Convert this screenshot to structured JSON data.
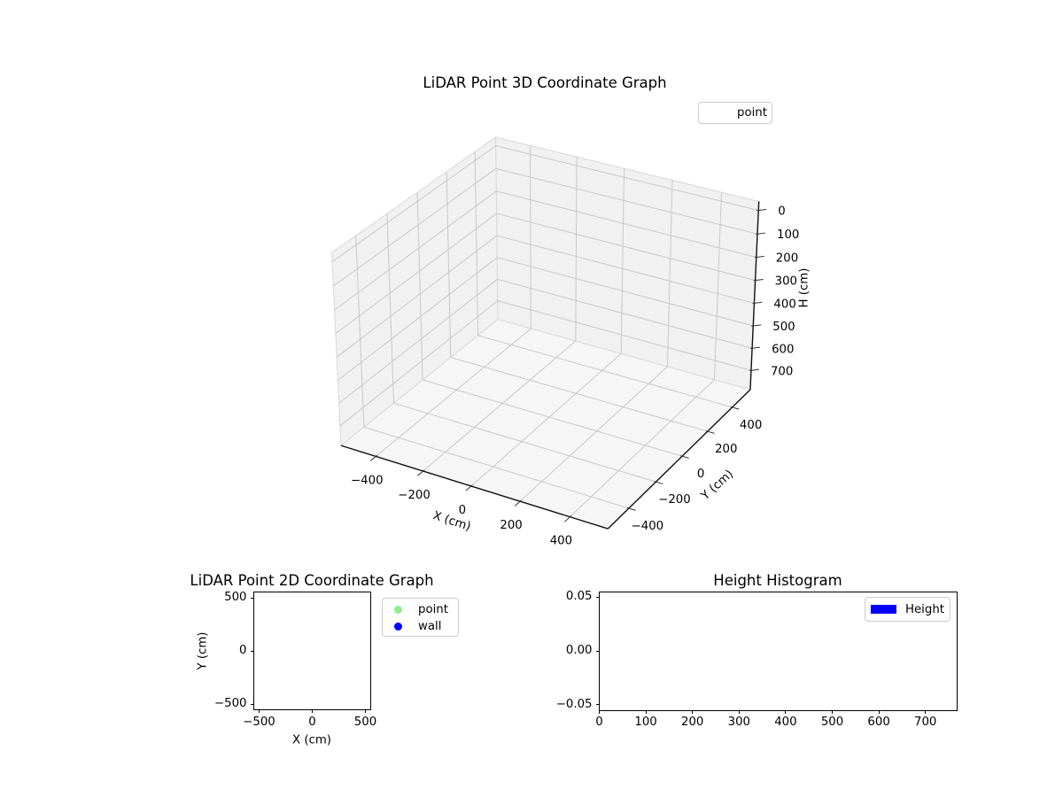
{
  "figure": {
    "background": "#ffffff"
  },
  "plots": {
    "p3d": {
      "title": "LiDAR Point 3D Coordinate Graph",
      "xlabel": "X (cm)",
      "ylabel": "Y (cm)",
      "zlabel": "H (cm)",
      "xtick_labels": [
        "−400",
        "−200",
        "0",
        "200",
        "400"
      ],
      "ytick_labels": [
        "−400",
        "−200",
        "0",
        "200",
        "400"
      ],
      "ztick_labels": [
        "0",
        "100",
        "200",
        "300",
        "400",
        "500",
        "600",
        "700"
      ],
      "legend": [
        {
          "label": "point",
          "marker_color": "transparent"
        }
      ]
    },
    "p2d": {
      "title": "LiDAR Point 2D Coordinate Graph",
      "xlabel": "X (cm)",
      "ylabel": "Y (cm)",
      "xtick_labels": [
        "−500",
        "0",
        "500"
      ],
      "ytick_labels": [
        "500",
        "0",
        "−500"
      ],
      "legend": [
        {
          "label": "point",
          "marker_color": "#90ee90"
        },
        {
          "label": "wall",
          "marker_color": "#0000ff"
        }
      ]
    },
    "hist": {
      "title": "Height Histogram",
      "xtick_labels": [
        "0",
        "100",
        "200",
        "300",
        "400",
        "500",
        "600",
        "700"
      ],
      "ytick_labels": [
        "0.05",
        "0.00",
        "−0.05"
      ],
      "legend": [
        {
          "label": "Height",
          "swatch_color": "#0000ff"
        }
      ]
    }
  },
  "chart_data": [
    {
      "type": "scatter",
      "dim": "3d",
      "title": "LiDAR Point 3D Coordinate Graph",
      "xlabel": "X (cm)",
      "ylabel": "Y (cm)",
      "zlabel": "H (cm)",
      "xlim": [
        -550,
        550
      ],
      "ylim": [
        -550,
        550
      ],
      "zlim": [
        787.5,
        -37.5
      ],
      "z_axis_inverted": true,
      "xticks": [
        -400,
        -200,
        0,
        200,
        400
      ],
      "yticks": [
        -400,
        -200,
        0,
        200,
        400
      ],
      "zticks": [
        0,
        100,
        200,
        300,
        400,
        500,
        600,
        700
      ],
      "grid": true,
      "view": {
        "elev": 30,
        "azim": -60
      },
      "legend_position": "upper right",
      "series": [
        {
          "name": "point",
          "points": []
        }
      ]
    },
    {
      "type": "scatter",
      "dim": "2d",
      "title": "LiDAR Point 2D Coordinate Graph",
      "xlabel": "X (cm)",
      "ylabel": "Y (cm)",
      "xlim": [
        -550,
        550
      ],
      "ylim": [
        -550,
        550
      ],
      "xticks": [
        -500,
        0,
        500
      ],
      "yticks": [
        500,
        0,
        -500
      ],
      "grid": false,
      "legend_position": "outside upper right",
      "series": [
        {
          "name": "point",
          "color": "#90ee90",
          "points": []
        },
        {
          "name": "wall",
          "color": "#0000ff",
          "points": []
        }
      ]
    },
    {
      "type": "bar",
      "title": "Height Histogram",
      "xlabel": "",
      "ylabel": "",
      "xlim": [
        0,
        768
      ],
      "ylim": [
        -0.055,
        0.055
      ],
      "xticks": [
        0,
        100,
        200,
        300,
        400,
        500,
        600,
        700
      ],
      "yticks": [
        0.05,
        0,
        -0.05
      ],
      "grid": false,
      "legend_position": "upper right",
      "series": [
        {
          "name": "Height",
          "color": "#0000ff",
          "values": []
        }
      ]
    }
  ],
  "style": {
    "pane_wall": "#f1f1f1",
    "pane_floor": "#f6f6f6",
    "grid_line": "#c8c8c8",
    "pane_edge": "#d8d8d8",
    "spine": "#111111"
  }
}
